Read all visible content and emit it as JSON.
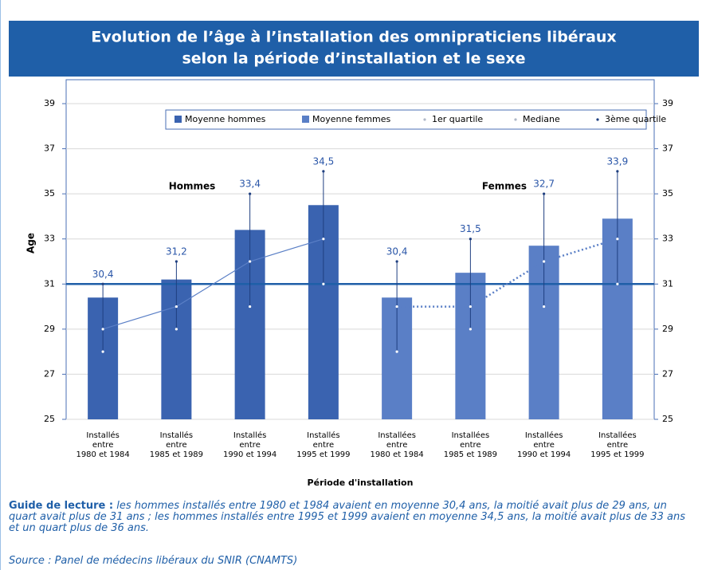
{
  "chart_data": {
    "type": "bar",
    "title": [
      "Evolution de l’âge à l’installation des omnipraticiens libéraux",
      "selon la période d’installation et le sexe"
    ],
    "y_label": "Age",
    "x_label": "Période d'installation",
    "categories": [
      [
        "Installés",
        "entre",
        "1980 et 1984"
      ],
      [
        "Installés",
        "entre",
        "1985 et 1989"
      ],
      [
        "Installés",
        "entre",
        "1990 et 1994"
      ],
      [
        "Installés",
        "entre",
        "1995 et 1999"
      ],
      [
        "Installées",
        "entre",
        "1980 et 1984"
      ],
      [
        "Installées",
        "entre",
        "1985 et 1989"
      ],
      [
        "Installées",
        "entre",
        "1990 et 1994"
      ],
      [
        "Installées",
        "entre",
        "1995 et 1999"
      ]
    ],
    "series": [
      {
        "name": "Moyenne hommes",
        "color": "#3a63b0",
        "values": [
          30.4,
          31.2,
          33.4,
          34.5,
          null,
          null,
          null,
          null
        ],
        "value_labels": [
          "30,4",
          "31,2",
          "33,4",
          "34,5",
          null,
          null,
          null,
          null
        ]
      },
      {
        "name": "Moyenne femmes",
        "color": "#5a7fc6",
        "values": [
          null,
          null,
          null,
          null,
          30.4,
          31.5,
          32.7,
          33.9
        ],
        "value_labels": [
          null,
          null,
          null,
          null,
          "30,4",
          "31,5",
          "32,7",
          "33,9"
        ]
      },
      {
        "name": "1er quartile",
        "color": "#ffffff",
        "values": [
          28,
          29,
          30,
          31,
          28,
          29,
          30,
          31
        ]
      },
      {
        "name": "Mediane",
        "color": "#5a7fc6",
        "values": [
          29,
          30,
          32,
          33,
          30,
          30,
          32,
          33
        ]
      },
      {
        "name": "3ème quartile",
        "color": "#ffffff",
        "values": [
          31,
          32,
          35,
          36,
          32,
          33,
          35,
          36
        ]
      }
    ],
    "annotations": [
      "Hommes",
      "Femmes"
    ],
    "reference_line": 31,
    "ylim": [
      25,
      39
    ],
    "yticks": [
      25,
      27,
      29,
      31,
      33,
      35,
      37,
      39
    ],
    "grid": true
  },
  "guide": {
    "label": "Guide de lecture :",
    "text": "les hommes installés entre 1980 et 1984 avaient en moyenne 30,4 ans, la moitié avait plus de 29 ans, un quart avait plus de 31 ans ; les hommes installés entre 1995 et 1999 avaient en moyenne 34,5 ans, la moitié avait plus de 33 ans et un quart plus de 36 ans."
  },
  "source": "Source : Panel de médecins libéraux du SNIR (CNAMTS)"
}
